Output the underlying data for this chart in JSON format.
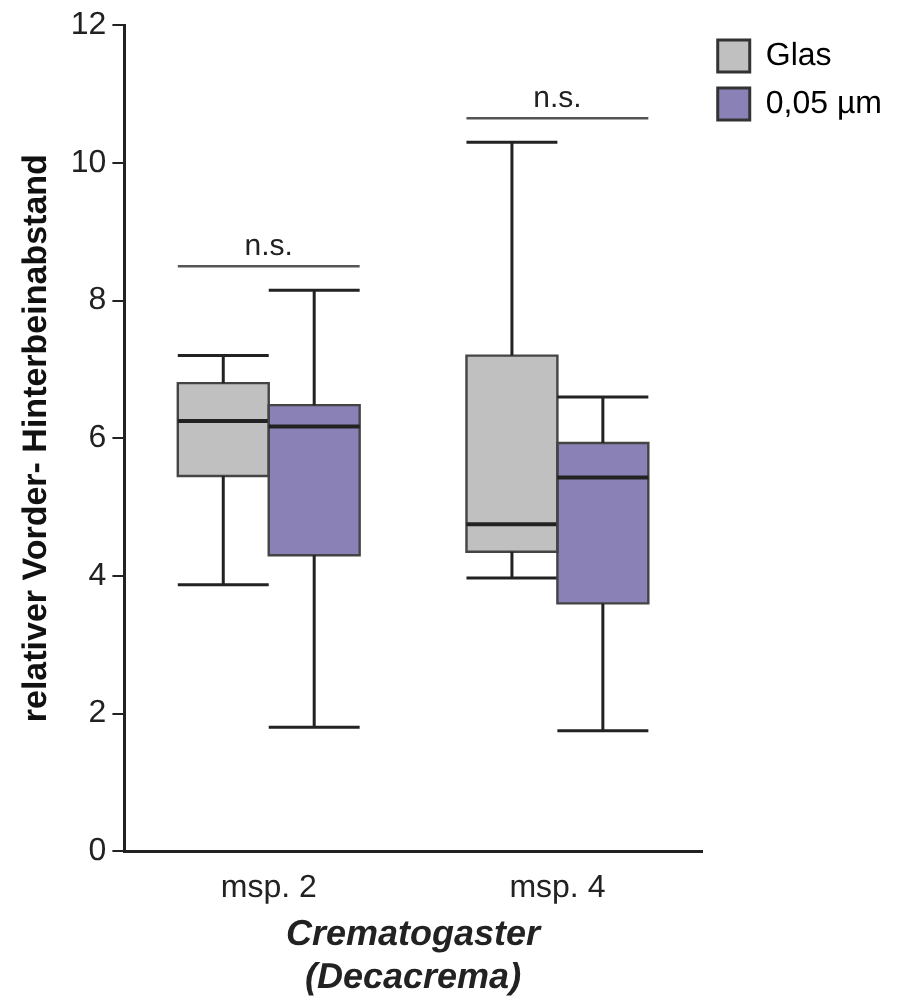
{
  "chart_data": {
    "type": "box",
    "ylabel": "relativer Vorder- Hinterbeinabstand",
    "xlabel": "Crematogaster\n(Decacrema)",
    "categories": [
      "msp. 2",
      "msp. 4"
    ],
    "ylim": [
      0,
      12
    ],
    "yticks": [
      0,
      2,
      4,
      6,
      8,
      10,
      12
    ],
    "grid": false,
    "legend": "top right",
    "series": [
      {
        "name": "Glas",
        "color": "#c0c0c0",
        "boxes": [
          {
            "low": 3.87,
            "q1": 5.45,
            "median": 6.25,
            "q3": 6.8,
            "high": 7.2
          },
          {
            "low": 3.97,
            "q1": 4.35,
            "median": 4.75,
            "q3": 7.2,
            "high": 10.3
          }
        ]
      },
      {
        "name": "0,05 µm",
        "color": "#8a82b6",
        "boxes": [
          {
            "low": 1.8,
            "q1": 4.3,
            "median": 6.17,
            "q3": 6.48,
            "high": 8.15
          },
          {
            "low": 1.75,
            "q1": 3.6,
            "median": 5.43,
            "q3": 5.93,
            "high": 6.6
          }
        ]
      }
    ],
    "annotations": [
      "n.s.",
      "n.s."
    ]
  }
}
